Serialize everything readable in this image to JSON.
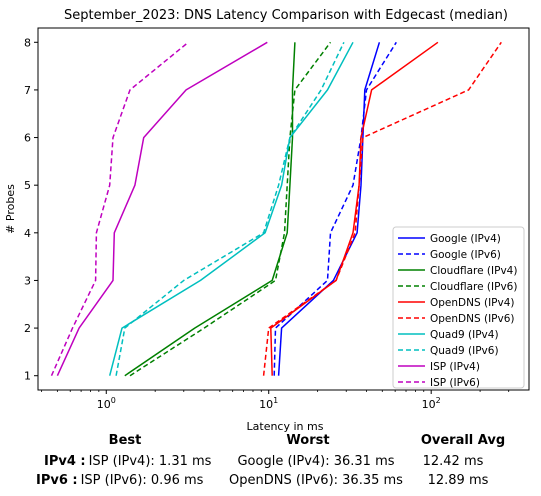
{
  "chart_data": {
    "type": "line",
    "title": "September_2023: DNS Latency Comparison with Edgecast (median)",
    "xlabel": "Latency in ms",
    "ylabel": "# Probes",
    "xscale": "log",
    "xlim": [
      0.38,
      400
    ],
    "ylim": [
      0.7,
      8.3
    ],
    "grid": false,
    "legend_position": "lower right",
    "x_ticks": [
      {
        "value": 1,
        "base": "10",
        "exp": "0"
      },
      {
        "value": 10,
        "base": "10",
        "exp": "1"
      },
      {
        "value": 100,
        "base": "10",
        "exp": "2"
      }
    ],
    "y_ticks": [
      1,
      2,
      3,
      4,
      5,
      6,
      7,
      8
    ],
    "series": [
      {
        "name": "Google (IPv4)",
        "color": "#0000ff",
        "dash": "solid",
        "points": [
          [
            11.5,
            1
          ],
          [
            12,
            2
          ],
          [
            25,
            3
          ],
          [
            35,
            4
          ],
          [
            37,
            5
          ],
          [
            38,
            6
          ],
          [
            39,
            7
          ],
          [
            48,
            8
          ]
        ]
      },
      {
        "name": "Google (IPv6)",
        "color": "#0000ff",
        "dash": "dashed",
        "points": [
          [
            10.8,
            1
          ],
          [
            11,
            2
          ],
          [
            23,
            3
          ],
          [
            24,
            4
          ],
          [
            33,
            5
          ],
          [
            37,
            6
          ],
          [
            40,
            7
          ],
          [
            61,
            8
          ]
        ]
      },
      {
        "name": "Cloudflare (IPv4)",
        "color": "#008000",
        "dash": "solid",
        "points": [
          [
            1.3,
            1
          ],
          [
            3.5,
            2
          ],
          [
            10.5,
            3
          ],
          [
            13,
            4
          ],
          [
            13.5,
            5
          ],
          [
            14,
            6
          ],
          [
            14,
            7
          ],
          [
            14.5,
            8
          ]
        ]
      },
      {
        "name": "Cloudflare (IPv6)",
        "color": "#008000",
        "dash": "dashed",
        "points": [
          [
            1.4,
            1
          ],
          [
            4,
            2
          ],
          [
            11,
            3
          ],
          [
            12.5,
            4
          ],
          [
            13,
            5
          ],
          [
            13.5,
            6
          ],
          [
            14.5,
            7
          ],
          [
            24,
            8
          ]
        ]
      },
      {
        "name": "OpenDNS (IPv4)",
        "color": "#ff0000",
        "dash": "solid",
        "points": [
          [
            10.5,
            1
          ],
          [
            10.3,
            2
          ],
          [
            26,
            3
          ],
          [
            33,
            4
          ],
          [
            36,
            5
          ],
          [
            37,
            6
          ],
          [
            43,
            7
          ],
          [
            110,
            8
          ]
        ]
      },
      {
        "name": "OpenDNS (IPv6)",
        "color": "#ff0000",
        "dash": "dashed",
        "points": [
          [
            9.3,
            1
          ],
          [
            10,
            2
          ],
          [
            26,
            3
          ],
          [
            34,
            4
          ],
          [
            36,
            5
          ],
          [
            38,
            6
          ],
          [
            170,
            7
          ],
          [
            270,
            8
          ]
        ]
      },
      {
        "name": "Quad9 (IPv4)",
        "color": "#00bfbf",
        "dash": "solid",
        "points": [
          [
            1.05,
            1
          ],
          [
            1.25,
            2
          ],
          [
            3.8,
            3
          ],
          [
            9.5,
            4
          ],
          [
            12,
            5
          ],
          [
            13.5,
            6
          ],
          [
            23,
            7
          ],
          [
            33,
            8
          ]
        ]
      },
      {
        "name": "Quad9 (IPv6)",
        "color": "#00bfbf",
        "dash": "dashed",
        "points": [
          [
            1.15,
            1
          ],
          [
            1.3,
            2
          ],
          [
            3,
            3
          ],
          [
            9.3,
            4
          ],
          [
            11.5,
            5
          ],
          [
            13.5,
            6
          ],
          [
            21,
            7
          ],
          [
            29,
            8
          ]
        ]
      },
      {
        "name": "ISP (IPv4)",
        "color": "#bf00bf",
        "dash": "solid",
        "points": [
          [
            0.5,
            1
          ],
          [
            0.68,
            2
          ],
          [
            1.1,
            3
          ],
          [
            1.12,
            4
          ],
          [
            1.5,
            5
          ],
          [
            1.7,
            6
          ],
          [
            3.1,
            7
          ],
          [
            9.8,
            8
          ]
        ]
      },
      {
        "name": "ISP (IPv6)",
        "color": "#bf00bf",
        "dash": "dashed",
        "points": [
          [
            0.46,
            1
          ],
          [
            0.62,
            2
          ],
          [
            0.86,
            3
          ],
          [
            0.87,
            4
          ],
          [
            1.05,
            5
          ],
          [
            1.1,
            6
          ],
          [
            1.4,
            7
          ],
          [
            3.2,
            8
          ]
        ]
      }
    ],
    "summary": {
      "headers": {
        "best": "Best",
        "worst": "Worst",
        "avg": "Overall Avg"
      },
      "rows": [
        {
          "label": "IPv4 :",
          "best": "ISP (IPv4): 1.31 ms",
          "worst": "Google (IPv4): 36.31 ms",
          "avg": "12.42 ms"
        },
        {
          "label": "IPv6 :",
          "best": "ISP (IPv6): 0.96 ms",
          "worst": "OpenDNS (IPv6): 36.35 ms",
          "avg": "12.89 ms"
        }
      ]
    }
  }
}
